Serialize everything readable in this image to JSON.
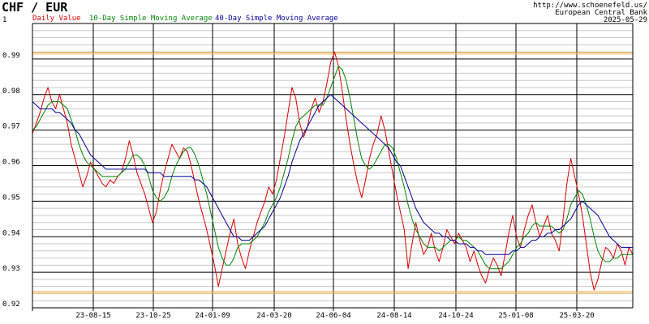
{
  "chart_data": {
    "type": "line",
    "title": "CHF / EUR",
    "legend": [
      {
        "label": "Daily Value",
        "color": "#dd0000"
      },
      {
        "label": "10-Day Simple Moving Average",
        "color": "#008800"
      },
      {
        "label": "40-Day Simple Moving Average",
        "color": "#000099"
      }
    ],
    "credit": [
      "http://www.schoenefeld.us/",
      "European Central Bank",
      "2025-05-29"
    ],
    "ylim": [
      0.92,
      1.0
    ],
    "y_ticks": [
      "1",
      "0.99",
      "0.98",
      "0.97",
      "0.96",
      "0.95",
      "0.94",
      "0.93",
      "0.92"
    ],
    "x_ticks": [
      "23-08-15",
      "23-10-25",
      "24-01-09",
      "24-03-20",
      "24-06-04",
      "24-08-14",
      "24-10-24",
      "25-01-08",
      "25-03-20"
    ],
    "bands": [
      0.9916,
      0.9243
    ],
    "grid": true,
    "series": [
      {
        "name": "Daily Value",
        "color": "#dd0000",
        "values": [
          0.969,
          0.972,
          0.975,
          0.979,
          0.982,
          0.978,
          0.976,
          0.98,
          0.976,
          0.972,
          0.966,
          0.962,
          0.958,
          0.954,
          0.957,
          0.961,
          0.959,
          0.957,
          0.955,
          0.954,
          0.956,
          0.955,
          0.957,
          0.958,
          0.962,
          0.967,
          0.963,
          0.958,
          0.955,
          0.952,
          0.948,
          0.944,
          0.947,
          0.953,
          0.958,
          0.962,
          0.966,
          0.964,
          0.962,
          0.965,
          0.964,
          0.96,
          0.955,
          0.95,
          0.946,
          0.942,
          0.937,
          0.932,
          0.926,
          0.931,
          0.936,
          0.941,
          0.945,
          0.938,
          0.934,
          0.931,
          0.936,
          0.94,
          0.944,
          0.947,
          0.95,
          0.954,
          0.952,
          0.956,
          0.962,
          0.968,
          0.975,
          0.982,
          0.979,
          0.972,
          0.968,
          0.971,
          0.976,
          0.979,
          0.975,
          0.978,
          0.983,
          0.989,
          0.992,
          0.988,
          0.981,
          0.973,
          0.966,
          0.96,
          0.955,
          0.951,
          0.956,
          0.962,
          0.966,
          0.969,
          0.974,
          0.97,
          0.964,
          0.958,
          0.952,
          0.947,
          0.942,
          0.931,
          0.938,
          0.944,
          0.939,
          0.935,
          0.937,
          0.941,
          0.936,
          0.933,
          0.937,
          0.942,
          0.94,
          0.938,
          0.941,
          0.939,
          0.937,
          0.933,
          0.936,
          0.932,
          0.929,
          0.927,
          0.931,
          0.934,
          0.932,
          0.929,
          0.935,
          0.941,
          0.946,
          0.94,
          0.937,
          0.942,
          0.946,
          0.949,
          0.944,
          0.94,
          0.943,
          0.946,
          0.941,
          0.939,
          0.936,
          0.945,
          0.955,
          0.962,
          0.957,
          0.952,
          0.946,
          0.938,
          0.93,
          0.925,
          0.928,
          0.933,
          0.937,
          0.936,
          0.934,
          0.938,
          0.936,
          0.932,
          0.937,
          0.935
        ]
      },
      {
        "name": "10-Day Simple Moving Average",
        "color": "#008800",
        "values": [
          0.97,
          0.971,
          0.973,
          0.975,
          0.977,
          0.978,
          0.978,
          0.978,
          0.977,
          0.976,
          0.973,
          0.97,
          0.966,
          0.963,
          0.961,
          0.96,
          0.959,
          0.958,
          0.957,
          0.957,
          0.957,
          0.957,
          0.957,
          0.958,
          0.959,
          0.961,
          0.963,
          0.963,
          0.962,
          0.96,
          0.957,
          0.953,
          0.951,
          0.95,
          0.951,
          0.953,
          0.957,
          0.96,
          0.962,
          0.964,
          0.965,
          0.965,
          0.963,
          0.96,
          0.956,
          0.952,
          0.947,
          0.942,
          0.937,
          0.934,
          0.932,
          0.932,
          0.934,
          0.937,
          0.938,
          0.938,
          0.938,
          0.939,
          0.94,
          0.942,
          0.944,
          0.947,
          0.949,
          0.951,
          0.954,
          0.958,
          0.962,
          0.967,
          0.971,
          0.973,
          0.974,
          0.975,
          0.976,
          0.977,
          0.977,
          0.977,
          0.979,
          0.982,
          0.985,
          0.988,
          0.987,
          0.984,
          0.979,
          0.973,
          0.967,
          0.962,
          0.96,
          0.959,
          0.96,
          0.962,
          0.964,
          0.966,
          0.966,
          0.965,
          0.962,
          0.958,
          0.954,
          0.949,
          0.945,
          0.942,
          0.94,
          0.938,
          0.937,
          0.937,
          0.937,
          0.936,
          0.937,
          0.938,
          0.939,
          0.939,
          0.94,
          0.939,
          0.939,
          0.938,
          0.937,
          0.936,
          0.934,
          0.932,
          0.931,
          0.931,
          0.931,
          0.931,
          0.932,
          0.933,
          0.935,
          0.937,
          0.938,
          0.94,
          0.941,
          0.943,
          0.944,
          0.943,
          0.943,
          0.943,
          0.943,
          0.942,
          0.941,
          0.942,
          0.945,
          0.949,
          0.951,
          0.953,
          0.952,
          0.949,
          0.945,
          0.94,
          0.936,
          0.934,
          0.933,
          0.933,
          0.934,
          0.934,
          0.935,
          0.935,
          0.935,
          0.935
        ]
      },
      {
        "name": "40-Day Simple Moving Average",
        "color": "#000099",
        "values": [
          0.978,
          0.977,
          0.976,
          0.976,
          0.976,
          0.976,
          0.975,
          0.975,
          0.974,
          0.973,
          0.972,
          0.97,
          0.969,
          0.967,
          0.965,
          0.963,
          0.962,
          0.961,
          0.96,
          0.959,
          0.959,
          0.959,
          0.959,
          0.959,
          0.959,
          0.959,
          0.959,
          0.959,
          0.959,
          0.959,
          0.958,
          0.958,
          0.958,
          0.958,
          0.957,
          0.957,
          0.957,
          0.957,
          0.957,
          0.957,
          0.957,
          0.957,
          0.956,
          0.956,
          0.955,
          0.954,
          0.952,
          0.95,
          0.948,
          0.946,
          0.944,
          0.942,
          0.94,
          0.94,
          0.939,
          0.939,
          0.939,
          0.94,
          0.941,
          0.942,
          0.943,
          0.945,
          0.947,
          0.949,
          0.951,
          0.954,
          0.957,
          0.961,
          0.964,
          0.967,
          0.969,
          0.971,
          0.973,
          0.975,
          0.977,
          0.978,
          0.979,
          0.98,
          0.979,
          0.978,
          0.977,
          0.976,
          0.975,
          0.974,
          0.973,
          0.972,
          0.971,
          0.97,
          0.969,
          0.968,
          0.967,
          0.966,
          0.965,
          0.963,
          0.961,
          0.96,
          0.957,
          0.954,
          0.951,
          0.948,
          0.946,
          0.944,
          0.943,
          0.942,
          0.941,
          0.941,
          0.94,
          0.94,
          0.939,
          0.939,
          0.938,
          0.938,
          0.938,
          0.937,
          0.937,
          0.936,
          0.936,
          0.935,
          0.935,
          0.935,
          0.935,
          0.935,
          0.935,
          0.935,
          0.936,
          0.936,
          0.937,
          0.937,
          0.938,
          0.939,
          0.939,
          0.94,
          0.94,
          0.941,
          0.941,
          0.942,
          0.942,
          0.943,
          0.944,
          0.945,
          0.947,
          0.949,
          0.95,
          0.949,
          0.948,
          0.947,
          0.946,
          0.944,
          0.942,
          0.94,
          0.939,
          0.938,
          0.937,
          0.937,
          0.937,
          0.937
        ]
      }
    ]
  }
}
